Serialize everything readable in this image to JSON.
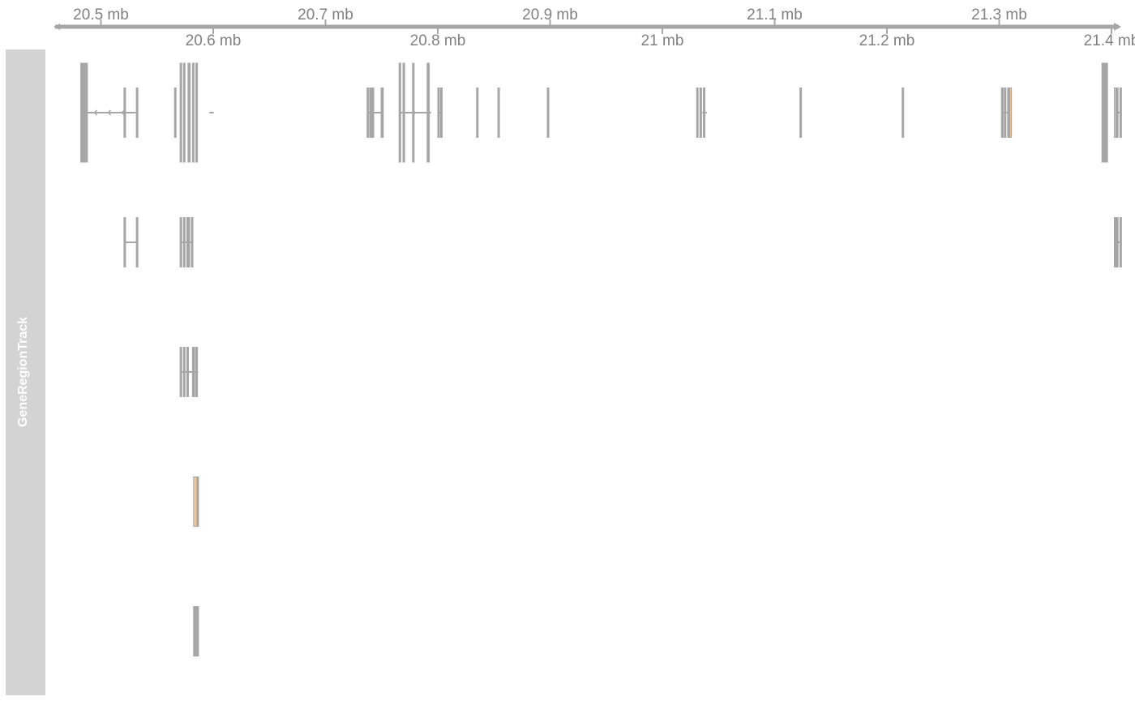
{
  "chart_data": {
    "type": "gene-track",
    "axis": {
      "unit": "mb",
      "range": [
        20.476,
        21.4
      ],
      "upper_ticks": [
        {
          "value": 20.5,
          "label": "20.5 mb"
        },
        {
          "value": 20.7,
          "label": "20.7 mb"
        },
        {
          "value": 20.9,
          "label": "20.9 mb"
        },
        {
          "value": 21.1,
          "label": "21.1 mb"
        },
        {
          "value": 21.3,
          "label": "21.3 mb"
        }
      ],
      "lower_ticks": [
        {
          "value": 20.6,
          "label": "20.6 mb"
        },
        {
          "value": 20.8,
          "label": "20.8 mb"
        },
        {
          "value": 21.0,
          "label": "21 mb"
        },
        {
          "value": 21.2,
          "label": "21.2 mb"
        },
        {
          "value": 21.4,
          "label": "21.4 mb"
        }
      ]
    },
    "track_title": "GeneRegionTrack",
    "colors": {
      "exon": "#a6a6a6",
      "highlight_exon": "#f5c78b",
      "panel": "#d3d3d3",
      "axis": "#a6a6a6",
      "text": "#808080"
    },
    "rows": [
      {
        "transcripts": [
          {
            "start": 20.482,
            "end": 20.531,
            "strand": "-",
            "exons": [
              {
                "s": 20.482,
                "e": 20.488,
                "tall": true
              },
              {
                "s": 20.5205,
                "e": 20.5215
              },
              {
                "s": 20.5315,
                "e": 20.5325
              }
            ]
          },
          {
            "start": 20.5965,
            "end": 20.6005,
            "exons": [
              {
                "s": 20.5655,
                "e": 20.5665
              },
              {
                "s": 20.5705,
                "e": 20.5715,
                "tall": true
              },
              {
                "s": 20.5735,
                "e": 20.5745,
                "tall": true
              },
              {
                "s": 20.5775,
                "e": 20.5795,
                "tall": true
              },
              {
                "s": 20.5815,
                "e": 20.5825,
                "tall": true
              },
              {
                "s": 20.5845,
                "e": 20.586,
                "tall": true
              }
            ]
          },
          {
            "start": 20.737,
            "end": 20.75,
            "exons": [
              {
                "s": 20.737,
                "e": 20.7385
              },
              {
                "s": 20.7395,
                "e": 20.7405
              },
              {
                "s": 20.7415,
                "e": 20.743
              },
              {
                "s": 20.7495,
                "e": 20.7515
              }
            ]
          },
          {
            "start": 20.766,
            "end": 20.794,
            "strand": "+",
            "exons": [
              {
                "s": 20.7655,
                "e": 20.767,
                "tall": true
              },
              {
                "s": 20.769,
                "e": 20.7705,
                "tall": true
              },
              {
                "s": 20.7775,
                "e": 20.7785,
                "tall": true
              },
              {
                "s": 20.7905,
                "e": 20.7925,
                "tall": true
              }
            ]
          },
          {
            "start": 20.8,
            "end": 20.803,
            "exons": [
              {
                "s": 20.8,
                "e": 20.801
              },
              {
                "s": 20.8025,
                "e": 20.8035
              }
            ]
          },
          {
            "start": 20.8345,
            "end": 20.8355,
            "exons": [
              {
                "s": 20.8345,
                "e": 20.8355
              }
            ]
          },
          {
            "start": 20.8535,
            "end": 20.8545,
            "exons": [
              {
                "s": 20.8535,
                "e": 20.8545
              }
            ]
          },
          {
            "start": 20.8975,
            "end": 20.8985,
            "exons": [
              {
                "s": 20.8975,
                "e": 20.8985
              }
            ]
          },
          {
            "start": 21.0355,
            "end": 21.0395,
            "exons": [
              {
                "s": 21.0305,
                "e": 21.0315
              },
              {
                "s": 21.0335,
                "e": 21.0345
              },
              {
                "s": 21.0365,
                "e": 21.0375
              }
            ]
          },
          {
            "start": 21.1225,
            "end": 21.1235,
            "exons": [
              {
                "s": 21.1225,
                "e": 21.1235
              }
            ]
          },
          {
            "start": 21.2135,
            "end": 21.2145,
            "exons": [
              {
                "s": 21.2135,
                "e": 21.2145
              }
            ]
          },
          {
            "start": 21.302,
            "end": 21.311,
            "exons": [
              {
                "s": 21.302,
                "e": 21.3035
              },
              {
                "s": 21.3045,
                "e": 21.306
              },
              {
                "s": 21.3075,
                "e": 21.309
              },
              {
                "s": 21.3095,
                "e": 21.3105,
                "highlight": true
              }
            ]
          },
          {
            "start": 21.3915,
            "end": 21.3965,
            "exons": [
              {
                "s": 21.3915,
                "e": 21.3965,
                "tall": true
              }
            ]
          },
          {
            "start": 21.4025,
            "end": 21.4085,
            "exons": [
              {
                "s": 21.4025,
                "e": 21.4035,
                "highlight": true
              },
              {
                "s": 21.4045,
                "e": 21.4055
              },
              {
                "s": 21.4075,
                "e": 21.4085
              }
            ]
          }
        ]
      },
      {
        "transcripts": [
          {
            "start": 20.5215,
            "end": 20.5325,
            "exons": [
              {
                "s": 20.5205,
                "e": 20.5215
              },
              {
                "s": 20.5315,
                "e": 20.5325
              }
            ]
          },
          {
            "start": 20.5705,
            "end": 20.5815,
            "exons": [
              {
                "s": 20.5705,
                "e": 20.5715
              },
              {
                "s": 20.5735,
                "e": 20.5745
              },
              {
                "s": 20.5765,
                "e": 20.579
              },
              {
                "s": 20.5805,
                "e": 20.5815
              }
            ]
          },
          {
            "start": 21.4025,
            "end": 21.4085,
            "exons": [
              {
                "s": 21.4025,
                "e": 21.4035
              },
              {
                "s": 21.4045,
                "e": 21.4055
              },
              {
                "s": 21.4075,
                "e": 21.4085
              }
            ]
          }
        ]
      },
      {
        "transcripts": [
          {
            "start": 20.5705,
            "end": 20.5865,
            "exons": [
              {
                "s": 20.5705,
                "e": 20.5715
              },
              {
                "s": 20.5735,
                "e": 20.5745
              },
              {
                "s": 20.5765,
                "e": 20.5775
              },
              {
                "s": 20.5815,
                "e": 20.5835
              },
              {
                "s": 20.5845,
                "e": 20.586
              }
            ]
          }
        ]
      },
      {
        "transcripts": [
          {
            "start": 20.5825,
            "end": 20.5865,
            "exons": [
              {
                "s": 20.5825,
                "e": 20.5855,
                "highlight": true
              },
              {
                "s": 20.5855,
                "e": 20.5865
              }
            ]
          }
        ]
      },
      {
        "transcripts": [
          {
            "start": 20.5825,
            "end": 20.5865,
            "exons": [
              {
                "s": 20.5825,
                "e": 20.5855
              },
              {
                "s": 20.5855,
                "e": 20.5865
              }
            ]
          }
        ]
      }
    ]
  }
}
